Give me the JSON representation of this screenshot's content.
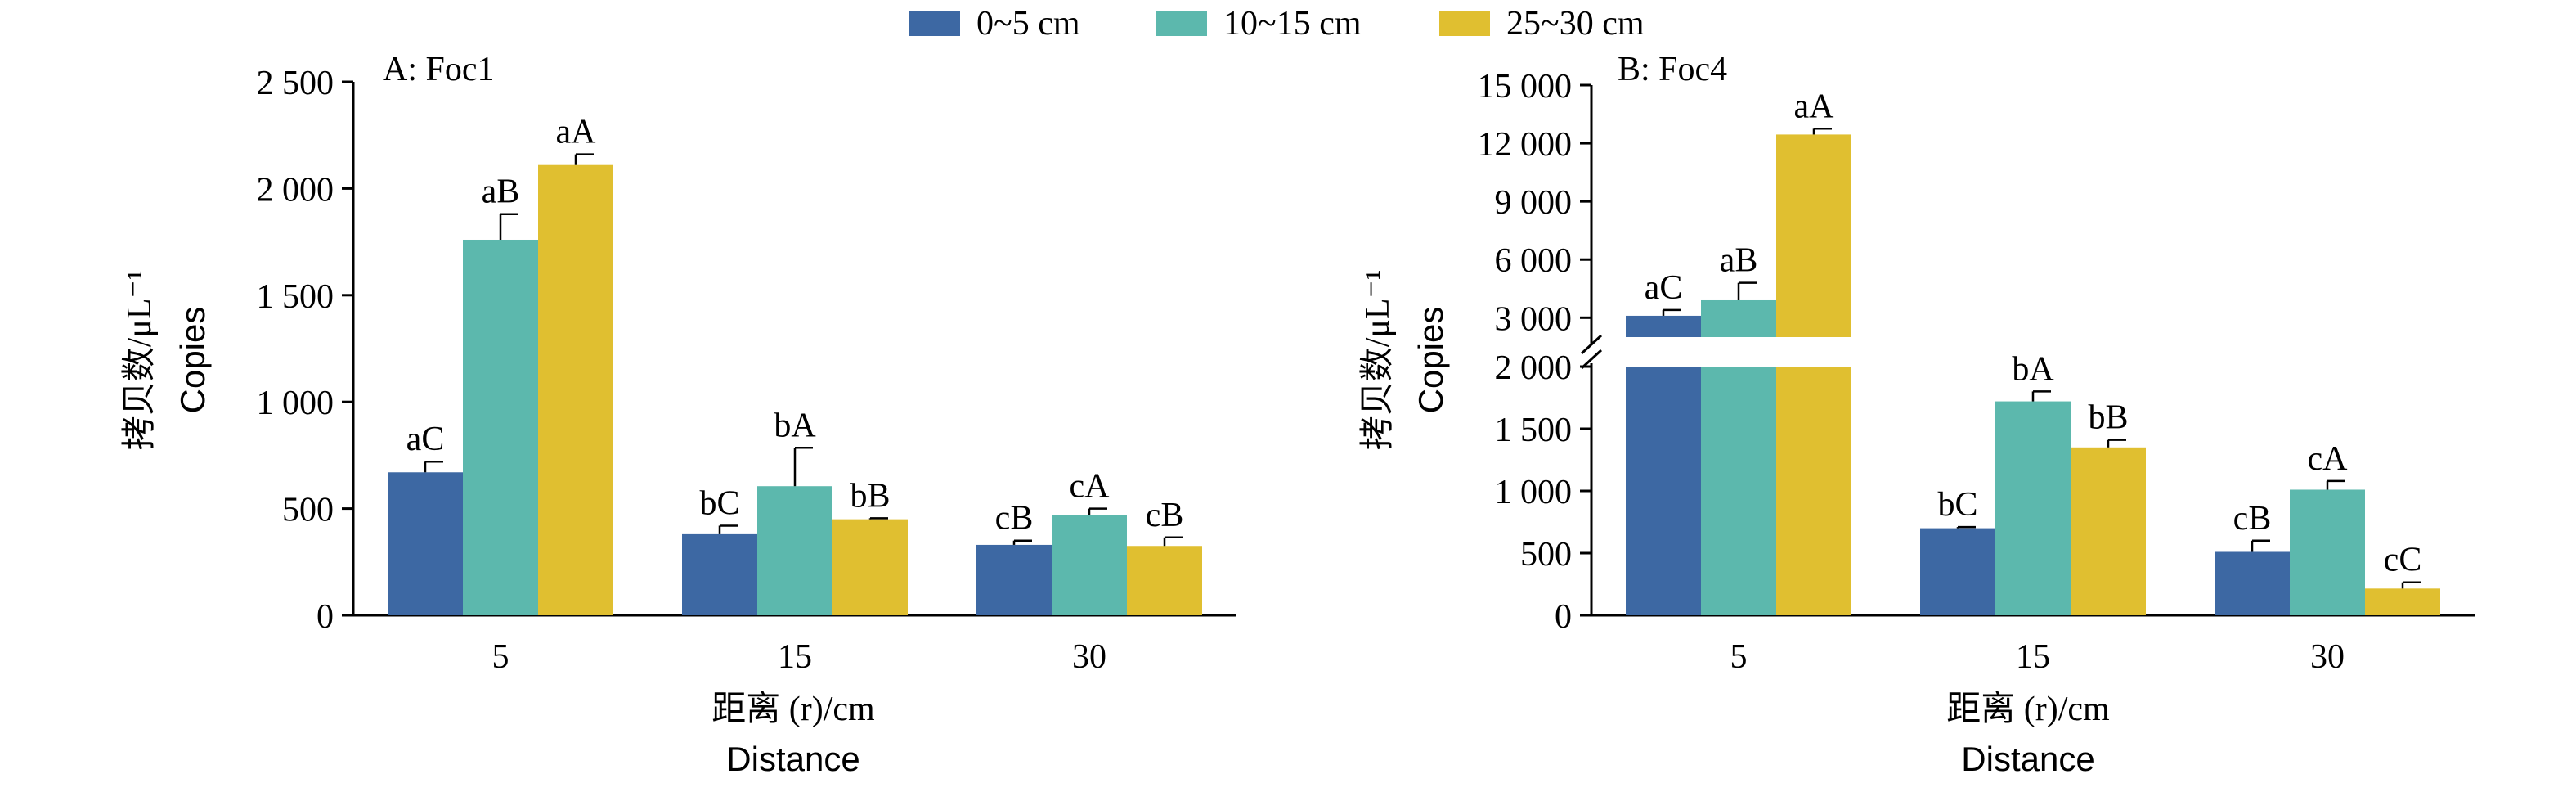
{
  "legend": [
    {
      "label": "0~5 cm",
      "color": "#3d68a3"
    },
    {
      "label": "10~15 cm",
      "color": "#5cb8ad"
    },
    {
      "label": "25~30 cm",
      "color": "#e0bf30"
    }
  ],
  "chart_data": [
    {
      "type": "bar",
      "panel_label": "A: Foc1",
      "categories": [
        "5",
        "15",
        "30"
      ],
      "xlabel_line1": "距离 (r)/cm",
      "xlabel_line2": "Distance",
      "ylabel_line1": "拷贝数/μL⁻¹",
      "ylabel_line2": "Copies",
      "ylim": [
        0,
        2500
      ],
      "yticks": [
        0,
        500,
        1000,
        1500,
        2000,
        2500
      ],
      "ytick_labels": [
        "0",
        "500",
        "1 000",
        "1 500",
        "2 000",
        "2 500"
      ],
      "series": [
        {
          "name": "0~5 cm",
          "values": [
            670,
            380,
            330
          ],
          "errors": [
            50,
            40,
            20
          ],
          "letters": [
            "aC",
            "bC",
            "cB"
          ]
        },
        {
          "name": "10~15 cm",
          "values": [
            1760,
            605,
            470
          ],
          "errors": [
            120,
            180,
            30
          ],
          "letters": [
            "aB",
            "bA",
            "cA"
          ]
        },
        {
          "name": "25~30 cm",
          "values": [
            2110,
            450,
            325
          ],
          "errors": [
            50,
            5,
            40
          ],
          "letters": [
            "aA",
            "bB",
            "cB"
          ]
        }
      ]
    },
    {
      "type": "bar",
      "panel_label": "B: Foc4",
      "categories": [
        "5",
        "15",
        "30"
      ],
      "xlabel_line1": "距离 (r)/cm",
      "xlabel_line2": "Distance",
      "ylabel_line1": "拷贝数/μL⁻¹",
      "ylabel_line2": "Copies",
      "broken_axis": true,
      "lower_ylim": [
        0,
        2000
      ],
      "upper_ylim": [
        2000,
        15000
      ],
      "yticks_lower": [
        0,
        500,
        1000,
        1500,
        2000
      ],
      "ytick_labels_lower": [
        "0",
        "500",
        "1 000",
        "1 500",
        "2 000"
      ],
      "yticks_upper": [
        3000,
        6000,
        9000,
        12000,
        15000
      ],
      "ytick_labels_upper": [
        "3 000",
        "6 000",
        "9 000",
        "12 000",
        "15 000"
      ],
      "series": [
        {
          "name": "0~5 cm",
          "values": [
            3100,
            700,
            510
          ],
          "errors": [
            300,
            10,
            90
          ],
          "letters": [
            "aC",
            "bC",
            "cB"
          ]
        },
        {
          "name": "10~15 cm",
          "values": [
            3900,
            1720,
            1010
          ],
          "errors": [
            900,
            80,
            70
          ],
          "letters": [
            "aB",
            "bA",
            "cA"
          ]
        },
        {
          "name": "25~30 cm",
          "values": [
            12450,
            1350,
            215
          ],
          "errors": [
            300,
            60,
            50
          ],
          "letters": [
            "aA",
            "bB",
            "cC"
          ]
        }
      ]
    }
  ]
}
